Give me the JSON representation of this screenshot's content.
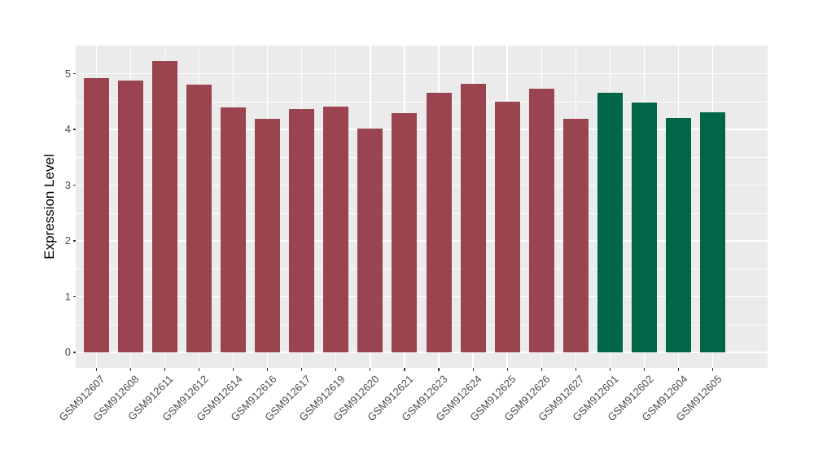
{
  "figure": {
    "background": "#FFFFFF",
    "panel_background": "#EBEBEB",
    "gridline_color": "#FFFFFF",
    "tick_color": "#333333",
    "axis_text_color": "#4D4D4D",
    "axis_title_color": "#000000"
  },
  "chart_data": {
    "type": "bar",
    "title": "",
    "xlabel": "",
    "ylabel": "Expression Level",
    "ylim": [
      0,
      5.5
    ],
    "yticks": [
      0,
      1,
      2,
      3,
      4,
      5
    ],
    "grid": "major and minor horizontal white gridlines, vertical white gridlines at category centers",
    "legend": "none",
    "categories": [
      "GSM912607",
      "GSM912608",
      "GSM912611",
      "GSM912612",
      "GSM912614",
      "GSM912616",
      "GSM912617",
      "GSM912619",
      "GSM912620",
      "GSM912621",
      "GSM912623",
      "GSM912624",
      "GSM912625",
      "GSM912626",
      "GSM912627",
      "GSM912601",
      "GSM912602",
      "GSM912604",
      "GSM912605"
    ],
    "values": [
      4.92,
      4.87,
      5.22,
      4.81,
      4.4,
      4.19,
      4.36,
      4.41,
      4.02,
      4.29,
      4.66,
      4.82,
      4.5,
      4.73,
      4.19,
      4.66,
      4.48,
      4.2,
      4.3
    ],
    "bar_colors": [
      "#9A4450",
      "#9A4450",
      "#9A4450",
      "#9A4450",
      "#9A4450",
      "#9A4450",
      "#9A4450",
      "#9A4450",
      "#9A4450",
      "#9A4450",
      "#9A4450",
      "#9A4450",
      "#9A4450",
      "#9A4450",
      "#9A4450",
      "#006647",
      "#006647",
      "#006647",
      "#006647"
    ],
    "group_colors": {
      "maroon_group": "#9A4450",
      "green_group": "#006647"
    }
  }
}
